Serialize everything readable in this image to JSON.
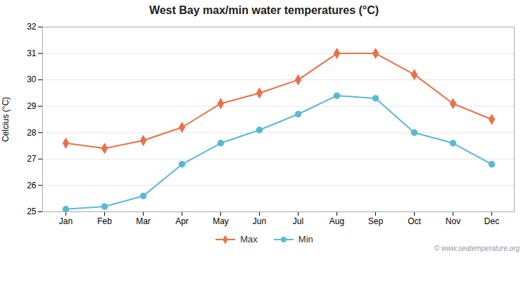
{
  "chart_data": {
    "type": "line",
    "title": "West Bay max/min water temperatures (°C)",
    "y_label": "Celcius (°C)",
    "categories": [
      "Jan",
      "Feb",
      "Mar",
      "Apr",
      "May",
      "Jun",
      "Jul",
      "Aug",
      "Sep",
      "Oct",
      "Nov",
      "Dec"
    ],
    "series": [
      {
        "name": "Max",
        "color": "#e8714a",
        "marker": "diamond",
        "values": [
          27.6,
          27.4,
          27.7,
          28.2,
          29.1,
          29.5,
          30.0,
          31.0,
          31.0,
          30.2,
          29.1,
          28.5
        ]
      },
      {
        "name": "Min",
        "color": "#5bb8d4",
        "marker": "circle",
        "values": [
          25.1,
          25.2,
          25.6,
          26.8,
          27.6,
          28.1,
          28.7,
          29.4,
          29.3,
          28.0,
          27.6,
          26.8
        ]
      }
    ],
    "ylim": [
      25,
      32
    ],
    "yticks": [
      25,
      26,
      27,
      28,
      29,
      30,
      31,
      32
    ],
    "grid": true,
    "legend": "bottom",
    "annotations": [
      "© www.seatemperature.org"
    ]
  }
}
